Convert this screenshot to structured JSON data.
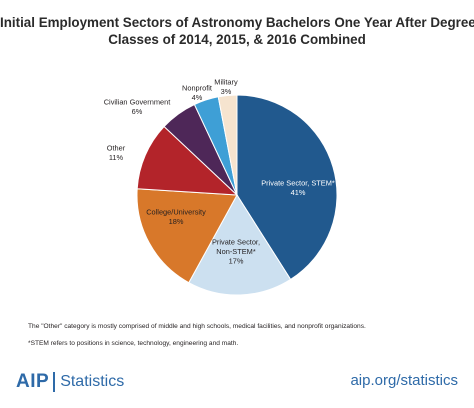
{
  "chart_data": {
    "type": "pie",
    "title": [
      "Initial Employment Sectors of Astronomy Bachelors One Year After Degree,",
      "Classes of 2014, 2015, & 2016 Combined"
    ],
    "slices": [
      {
        "label": [
          "Private Sector, STEM*"
        ],
        "value": "41%",
        "pct": 41,
        "color": "#21598e",
        "text_color": "#ffffff"
      },
      {
        "label": [
          "Private Sector,",
          "Non-STEM*"
        ],
        "value": "17%",
        "pct": 17,
        "color": "#cce0f0",
        "text_color": "#231f20"
      },
      {
        "label": [
          "College/University"
        ],
        "value": "18%",
        "pct": 18,
        "color": "#d8782a",
        "text_color": "#231f20"
      },
      {
        "label": [
          "Other"
        ],
        "value": "11%",
        "pct": 11,
        "color": "#b3242a",
        "text_color": "#231f20"
      },
      {
        "label": [
          "Civilian Government"
        ],
        "value": "6%",
        "pct": 6,
        "color": "#4e2758",
        "text_color": "#231f20"
      },
      {
        "label": [
          "Nonprofit"
        ],
        "value": "4%",
        "pct": 4,
        "color": "#3e9fd6",
        "text_color": "#231f20"
      },
      {
        "label": [
          "Military"
        ],
        "value": "3%",
        "pct": 3,
        "color": "#f6e4cf",
        "text_color": "#231f20"
      }
    ]
  },
  "notes": [
    "The \"Other\" category is mostly comprised of middle and high schools, medical facilities, and nonprofit organizations.",
    "*STEM refers to positions in science, technology, engineering and math."
  ],
  "footer": {
    "logo_left": "AIP",
    "logo_right": "Statistics",
    "url": "aip.org/statistics"
  },
  "colors": {
    "brand": "#2e6aa8"
  }
}
